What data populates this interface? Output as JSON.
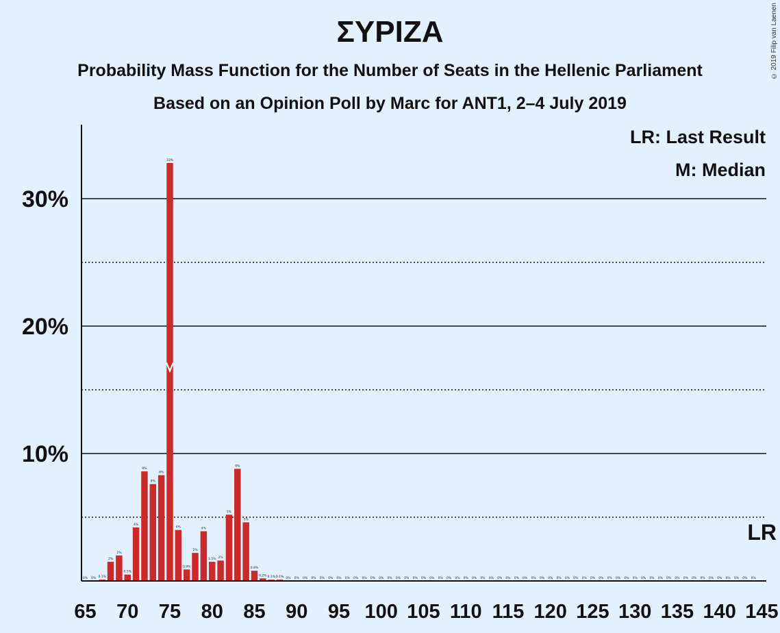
{
  "copyright": "© 2019 Filip van Laenen",
  "chart_data": {
    "type": "bar",
    "title": "ΣΥΡΙΖΑ",
    "subtitle_1": "Probability Mass Function for the Number of Seats in the Hellenic Parliament",
    "subtitle_2": "Based on an Opinion Poll by Marc for ANT1, 2–4 July 2019",
    "xlabel": "",
    "ylabel": "",
    "x_range": [
      65,
      145
    ],
    "ylim": [
      0,
      35
    ],
    "y_ticks": [
      10,
      20,
      30
    ],
    "y_tick_labels": [
      "10%",
      "20%",
      "30%"
    ],
    "y_minor_gridlines": [
      5,
      15,
      25
    ],
    "x_ticks": [
      65,
      70,
      75,
      80,
      85,
      90,
      95,
      100,
      105,
      110,
      115,
      120,
      125,
      130,
      135,
      140,
      145
    ],
    "x_tick_labels": [
      "65",
      "70",
      "75",
      "80",
      "85",
      "90",
      "95",
      "100",
      "105",
      "110",
      "115",
      "120",
      "125",
      "130",
      "135",
      "140",
      "145"
    ],
    "bar_color": "#cc2a2a",
    "seats": [
      65,
      66,
      67,
      68,
      69,
      70,
      71,
      72,
      73,
      74,
      75,
      76,
      77,
      78,
      79,
      80,
      81,
      82,
      83,
      84,
      85,
      86,
      87,
      88,
      89,
      90,
      91,
      92,
      93,
      94,
      95,
      96,
      97,
      98,
      99,
      100,
      101,
      102,
      103,
      104,
      105,
      106,
      107,
      108,
      109,
      110,
      111,
      112,
      113,
      114,
      115,
      116,
      117,
      118,
      119,
      120,
      121,
      122,
      123,
      124,
      125,
      126,
      127,
      128,
      129,
      130,
      131,
      132,
      133,
      134,
      135,
      136,
      137,
      138,
      139,
      140,
      141,
      142,
      143,
      144
    ],
    "values": [
      0,
      0,
      0.1,
      1.5,
      2,
      0.5,
      4.2,
      8.6,
      7.6,
      8.3,
      32.8,
      4,
      0.9,
      2.2,
      3.9,
      1.5,
      1.6,
      5.2,
      8.8,
      4.6,
      0.8,
      0.2,
      0.1,
      0.1,
      0,
      0,
      0,
      0,
      0,
      0,
      0,
      0,
      0,
      0,
      0,
      0,
      0,
      0,
      0,
      0,
      0,
      0,
      0,
      0,
      0,
      0,
      0,
      0,
      0,
      0,
      0,
      0,
      0,
      0,
      0,
      0,
      0,
      0,
      0,
      0,
      0,
      0,
      0,
      0,
      0,
      0,
      0,
      0,
      0,
      0,
      0,
      0,
      0,
      0,
      0,
      0,
      0,
      0,
      0,
      0
    ],
    "value_labels": [
      "0%",
      "0%",
      "0.1%",
      "2%",
      "2%",
      "0.5%",
      "4%",
      "9%",
      "8%",
      "8%",
      "33%",
      "4%",
      "0.9%",
      "2%",
      "4%",
      "1.5%",
      "2%",
      "5%",
      "9%",
      "5%",
      "0.8%",
      "0.2%",
      "0.1%",
      "0.1%",
      "0%",
      "0%",
      "0%",
      "0%",
      "0%",
      "0%",
      "0%",
      "0%",
      "0%",
      "0%",
      "0%",
      "0%",
      "0%",
      "0%",
      "0%",
      "0%",
      "0%",
      "0%",
      "0%",
      "0%",
      "0%",
      "0%",
      "0%",
      "0%",
      "0%",
      "0%",
      "0%",
      "0%",
      "0%",
      "0%",
      "0%",
      "0%",
      "0%",
      "0%",
      "0%",
      "0%",
      "0%",
      "0%",
      "0%",
      "0%",
      "0%",
      "0%",
      "0%",
      "0%",
      "0%",
      "0%",
      "0%",
      "0%",
      "0%",
      "0%",
      "0%",
      "0%",
      "0%",
      "0%",
      "0%",
      "0%"
    ],
    "median_seat": 75,
    "median_marker": "M",
    "last_result_seat": 145,
    "last_result_marker": "LR",
    "legend": [
      "LR: Last Result",
      "M: Median"
    ],
    "legend_position": "top-right"
  }
}
